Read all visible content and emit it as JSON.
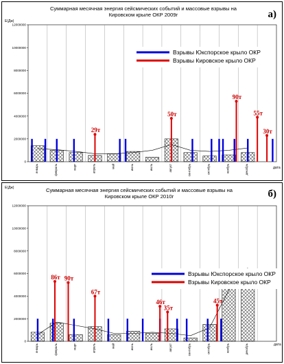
{
  "chart_data": [
    {
      "type": "bar",
      "panel_label": "а)",
      "title_line1": "Суммарная месячная энергия сейсмических событий и массовые взрывы на",
      "title_line2": "Кировском крыле ОКР 2009г",
      "ylabel": "Е(Дж)",
      "xlabel": "дата",
      "ylim": [
        0,
        12000000
      ],
      "yticks": [
        0,
        2000000,
        4000000,
        6000000,
        8000000,
        10000000,
        12000000
      ],
      "ytick_labels": [
        "0",
        "2000000",
        "4000000",
        "6000000",
        "8000000",
        "10000000",
        "12000000"
      ],
      "categories": [
        "январь",
        "февраль",
        "март",
        "апрель",
        "май",
        "июнь",
        "июль",
        "август",
        "сентябрь",
        "октябрь",
        "ноябрь",
        "декабрь"
      ],
      "energy": [
        1400000,
        1000000,
        800000,
        550000,
        700000,
        900000,
        400000,
        2000000,
        800000,
        500000,
        600000,
        800000
      ],
      "trend": [
        1150000,
        1050000,
        900000,
        700000,
        700000,
        800000,
        1000000,
        1500000,
        1000000,
        900000,
        1000000,
        1200000
      ],
      "legend": {
        "south": "Взрывы Юкспорское крыло ОКР",
        "kirov": "Взрывы Кировское крыло ОКР",
        "position": "top-right"
      },
      "south_blasts": [
        {
          "x": 0.2,
          "value": 2000000
        },
        {
          "x": 0.9,
          "value": 2000000
        },
        {
          "x": 1.5,
          "value": 2000000
        },
        {
          "x": 2.4,
          "value": 2000000
        },
        {
          "x": 4.8,
          "value": 2000000
        },
        {
          "x": 5.1,
          "value": 2000000
        },
        {
          "x": 8.6,
          "value": 2000000
        },
        {
          "x": 9.6,
          "value": 2000000
        },
        {
          "x": 10.0,
          "value": 2000000
        },
        {
          "x": 10.2,
          "value": 2000000
        },
        {
          "x": 10.8,
          "value": 2000000
        },
        {
          "x": 11.5,
          "value": 2000000
        },
        {
          "x": 12.8,
          "value": 2000000
        }
      ],
      "kirov_blasts": [
        {
          "x": 3.5,
          "value": 2400000,
          "label": "29т"
        },
        {
          "x": 7.5,
          "value": 3800000,
          "label": "50т"
        },
        {
          "x": 10.9,
          "value": 5300000,
          "label": "90т"
        },
        {
          "x": 12.0,
          "value": 3900000,
          "label": "55т"
        },
        {
          "x": 12.5,
          "value": 2300000,
          "label": "30т"
        }
      ]
    },
    {
      "type": "bar",
      "panel_label": "б)",
      "title_line1": "Суммарная месячная энергия сейсмических событий и массовые взрывы на",
      "title_line2": "Кировском крыле ОКР 2010г",
      "ylabel": "Е(Дж)",
      "xlabel": "дата",
      "ylim": [
        0,
        12000000
      ],
      "yticks": [
        0,
        2000000,
        4000000,
        6000000,
        8000000,
        10000000,
        12000000
      ],
      "ytick_labels": [
        "0",
        "2000000",
        "4000000",
        "6000000",
        "8000000",
        "10000000",
        "12000000"
      ],
      "categories": [
        "январь",
        "февраль",
        "март",
        "апрель",
        "май",
        "июнь",
        "июль",
        "август",
        "сентябрь",
        "октябрь",
        "ноябрь",
        "декабрь"
      ],
      "energy": [
        800000,
        1600000,
        600000,
        1300000,
        600000,
        900000,
        700000,
        1100000,
        300000,
        1500000,
        5900000,
        6200000
      ],
      "trend": [
        600000,
        1700000,
        1400000,
        1100000,
        700000,
        700000,
        800000,
        700000,
        500000,
        1200000,
        4500000,
        6500000
      ],
      "legend": {
        "south": "Взрывы Юкспорское крыло ОКР",
        "kirov": "Взрывы Кировское крыло ОКР",
        "position": "top-center"
      },
      "south_blasts": [
        {
          "x": 0.5,
          "value": 2000000
        },
        {
          "x": 1.3,
          "value": 2000000
        },
        {
          "x": 2.4,
          "value": 2000000
        },
        {
          "x": 4.2,
          "value": 2000000
        },
        {
          "x": 5.2,
          "value": 2000000
        },
        {
          "x": 6.0,
          "value": 2000000
        },
        {
          "x": 6.9,
          "value": 2000000
        },
        {
          "x": 7.8,
          "value": 2000000
        },
        {
          "x": 8.3,
          "value": 2000000
        },
        {
          "x": 9.4,
          "value": 2000000
        },
        {
          "x": 10.1,
          "value": 2000000
        }
      ],
      "kirov_blasts": [
        {
          "x": 1.4,
          "value": 5300000,
          "label": "86т"
        },
        {
          "x": 2.1,
          "value": 5200000,
          "label": "90т"
        },
        {
          "x": 3.5,
          "value": 4000000,
          "label": "67т"
        },
        {
          "x": 6.9,
          "value": 3100000,
          "label": "46т"
        },
        {
          "x": 7.3,
          "value": 2600000,
          "label": "35т"
        },
        {
          "x": 9.9,
          "value": 3200000,
          "label": "45т"
        }
      ]
    }
  ]
}
